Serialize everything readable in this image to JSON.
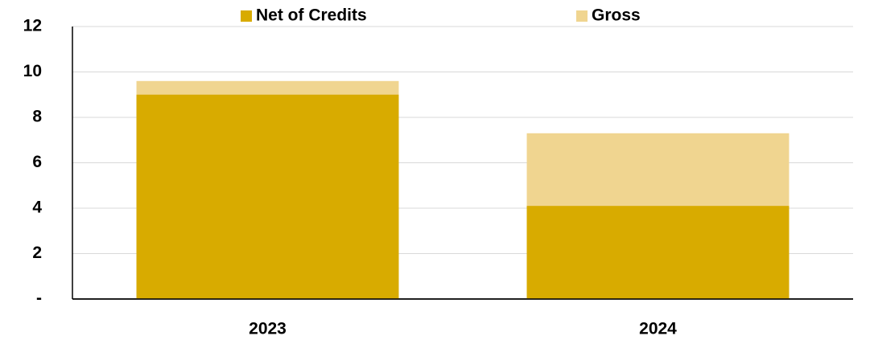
{
  "chart_data": {
    "type": "bar",
    "overlap": true,
    "categories": [
      "2023",
      "2024"
    ],
    "series": [
      {
        "name": "Gross",
        "color": "#f0d590",
        "values": [
          9.6,
          7.3
        ]
      },
      {
        "name": "Net of Credits",
        "color": "#d8ab00",
        "values": [
          9.0,
          4.1
        ]
      }
    ],
    "legend_order": [
      1,
      0
    ],
    "ylim": [
      0,
      12
    ],
    "yticks": [
      {
        "value": 0,
        "label": "-"
      },
      2,
      4,
      6,
      8,
      10,
      12
    ],
    "grid": true
  }
}
